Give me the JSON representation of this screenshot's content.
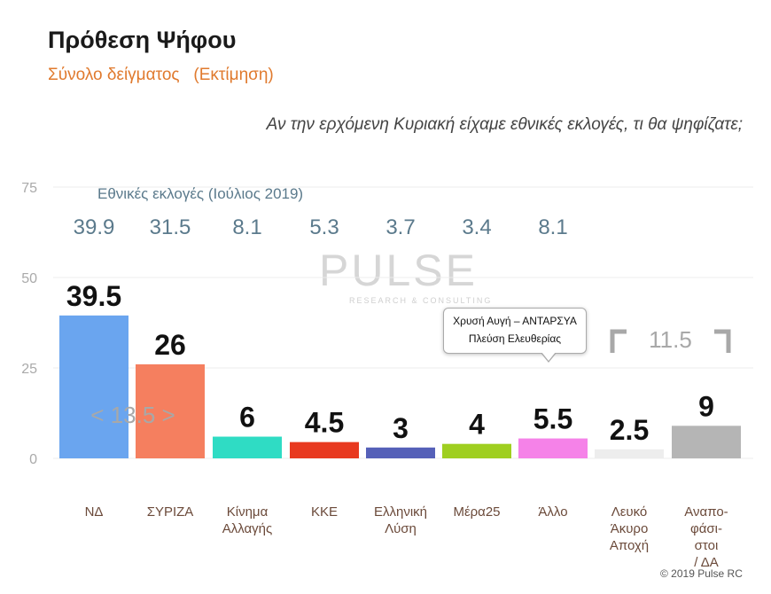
{
  "title": "Πρόθεση Ψήφου",
  "subtitle": "Σύνολο δείγματος   (Εκτίμηση)",
  "question": "Αν την ερχόμενη Κυριακή είχαμε εθνικές εκλογές, τι θα ψηφίζατε;",
  "watermark": {
    "main": "PULSE",
    "sub": "RESEARCH & CONSULTING"
  },
  "copyright": "© 2019 Pulse RC",
  "colors": {
    "ND": "#6aa5ef",
    "SYRIZA": "#f57f5f",
    "KINAL": "#2fdcc4",
    "KKE": "#e8391f",
    "EL": "#5560b8",
    "MERA25": "#9fcf20",
    "OTHER": "#f582e8",
    "BLANK": "#ededed",
    "UNDECIDED": "#b5b5b5",
    "prev": "#5b7a8c",
    "gap": "#a8a8a8"
  },
  "chart_data": {
    "type": "bar",
    "ylim": [
      0,
      75
    ],
    "yticks": [
      "0",
      "25",
      "50",
      "75"
    ],
    "grid": true,
    "categories": [
      "ΝΔ",
      "ΣΥΡΙΖΑ",
      "Κίνημα\nΑλλαγής",
      "ΚΚΕ",
      "Ελληνική\nΛύση",
      "Μέρα25",
      "Άλλο",
      "Λευκό\nΆκυρο\nΑποχή",
      "Αναπο-\nφάσι-\nστοι\n/ ΔΑ"
    ],
    "series": [
      {
        "values": [
          39.5,
          26,
          6,
          4.5,
          3,
          4,
          5.5,
          2.5,
          9
        ],
        "labels": [
          "39.5",
          "26",
          "6",
          "4.5",
          "3",
          "4",
          "5.5",
          "2.5",
          "9"
        ]
      }
    ],
    "previous_election": {
      "label": "Εθνικές εκλογές (Ιούλιος 2019)",
      "values": [
        "39.9",
        "31.5",
        "8.1",
        "5.3",
        "3.7",
        "3.4",
        "8.1"
      ]
    },
    "annotations": {
      "gap_nd_syriza": "< 13.5 >",
      "blank_plus_undecided": "11.5",
      "other_note": [
        "Χρυσή Αυγή – ΑΝΤΑΡΣΥΑ",
        "Πλεύση Ελευθερίας"
      ]
    }
  }
}
